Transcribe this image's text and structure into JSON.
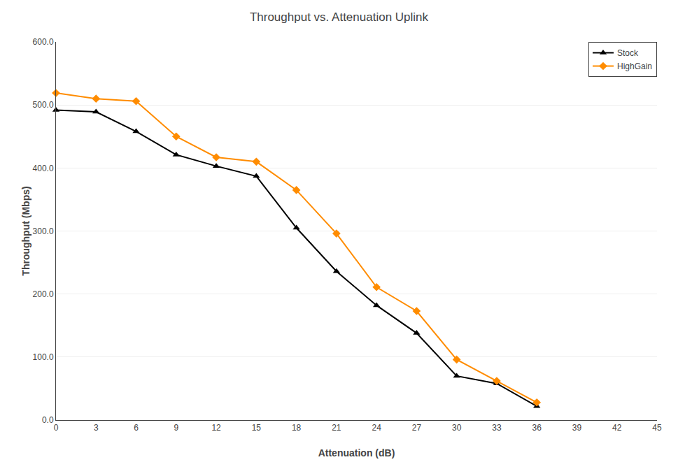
{
  "chart_data": {
    "type": "line",
    "title": "Throughput vs. Attenuation Uplink",
    "x_label": "Attenuation (dB)",
    "y_label": "Throughput (Mbps)",
    "x": [
      0,
      3,
      6,
      9,
      12,
      15,
      18,
      21,
      24,
      27,
      30,
      33,
      36
    ],
    "series": [
      {
        "name": "Stock",
        "color": "#000000",
        "marker": "triangle-up",
        "values": [
          492,
          489,
          458,
          421,
          403,
          387,
          305,
          236,
          182,
          138,
          70,
          58,
          22
        ]
      },
      {
        "name": "HighGain",
        "color": "#FF8C00",
        "marker": "diamond",
        "values": [
          519,
          510,
          506,
          450,
          417,
          410,
          365,
          296,
          211,
          173,
          96,
          62,
          28
        ]
      }
    ],
    "xlim": [
      0,
      45
    ],
    "ylim": [
      0,
      600
    ],
    "xticks": [
      0,
      3,
      6,
      9,
      12,
      15,
      18,
      21,
      24,
      27,
      30,
      33,
      36,
      39,
      42,
      45
    ],
    "yticks": [
      {
        "value": 0,
        "label": "0.0"
      },
      {
        "value": 100,
        "label": "100.0"
      },
      {
        "value": 200,
        "label": "200.0"
      },
      {
        "value": 300,
        "label": "300.0"
      },
      {
        "value": 400,
        "label": "400.0"
      },
      {
        "value": 500,
        "label": "500.0"
      },
      {
        "value": 600,
        "label": "600.0"
      }
    ],
    "grid": true,
    "legend": "upper right"
  }
}
